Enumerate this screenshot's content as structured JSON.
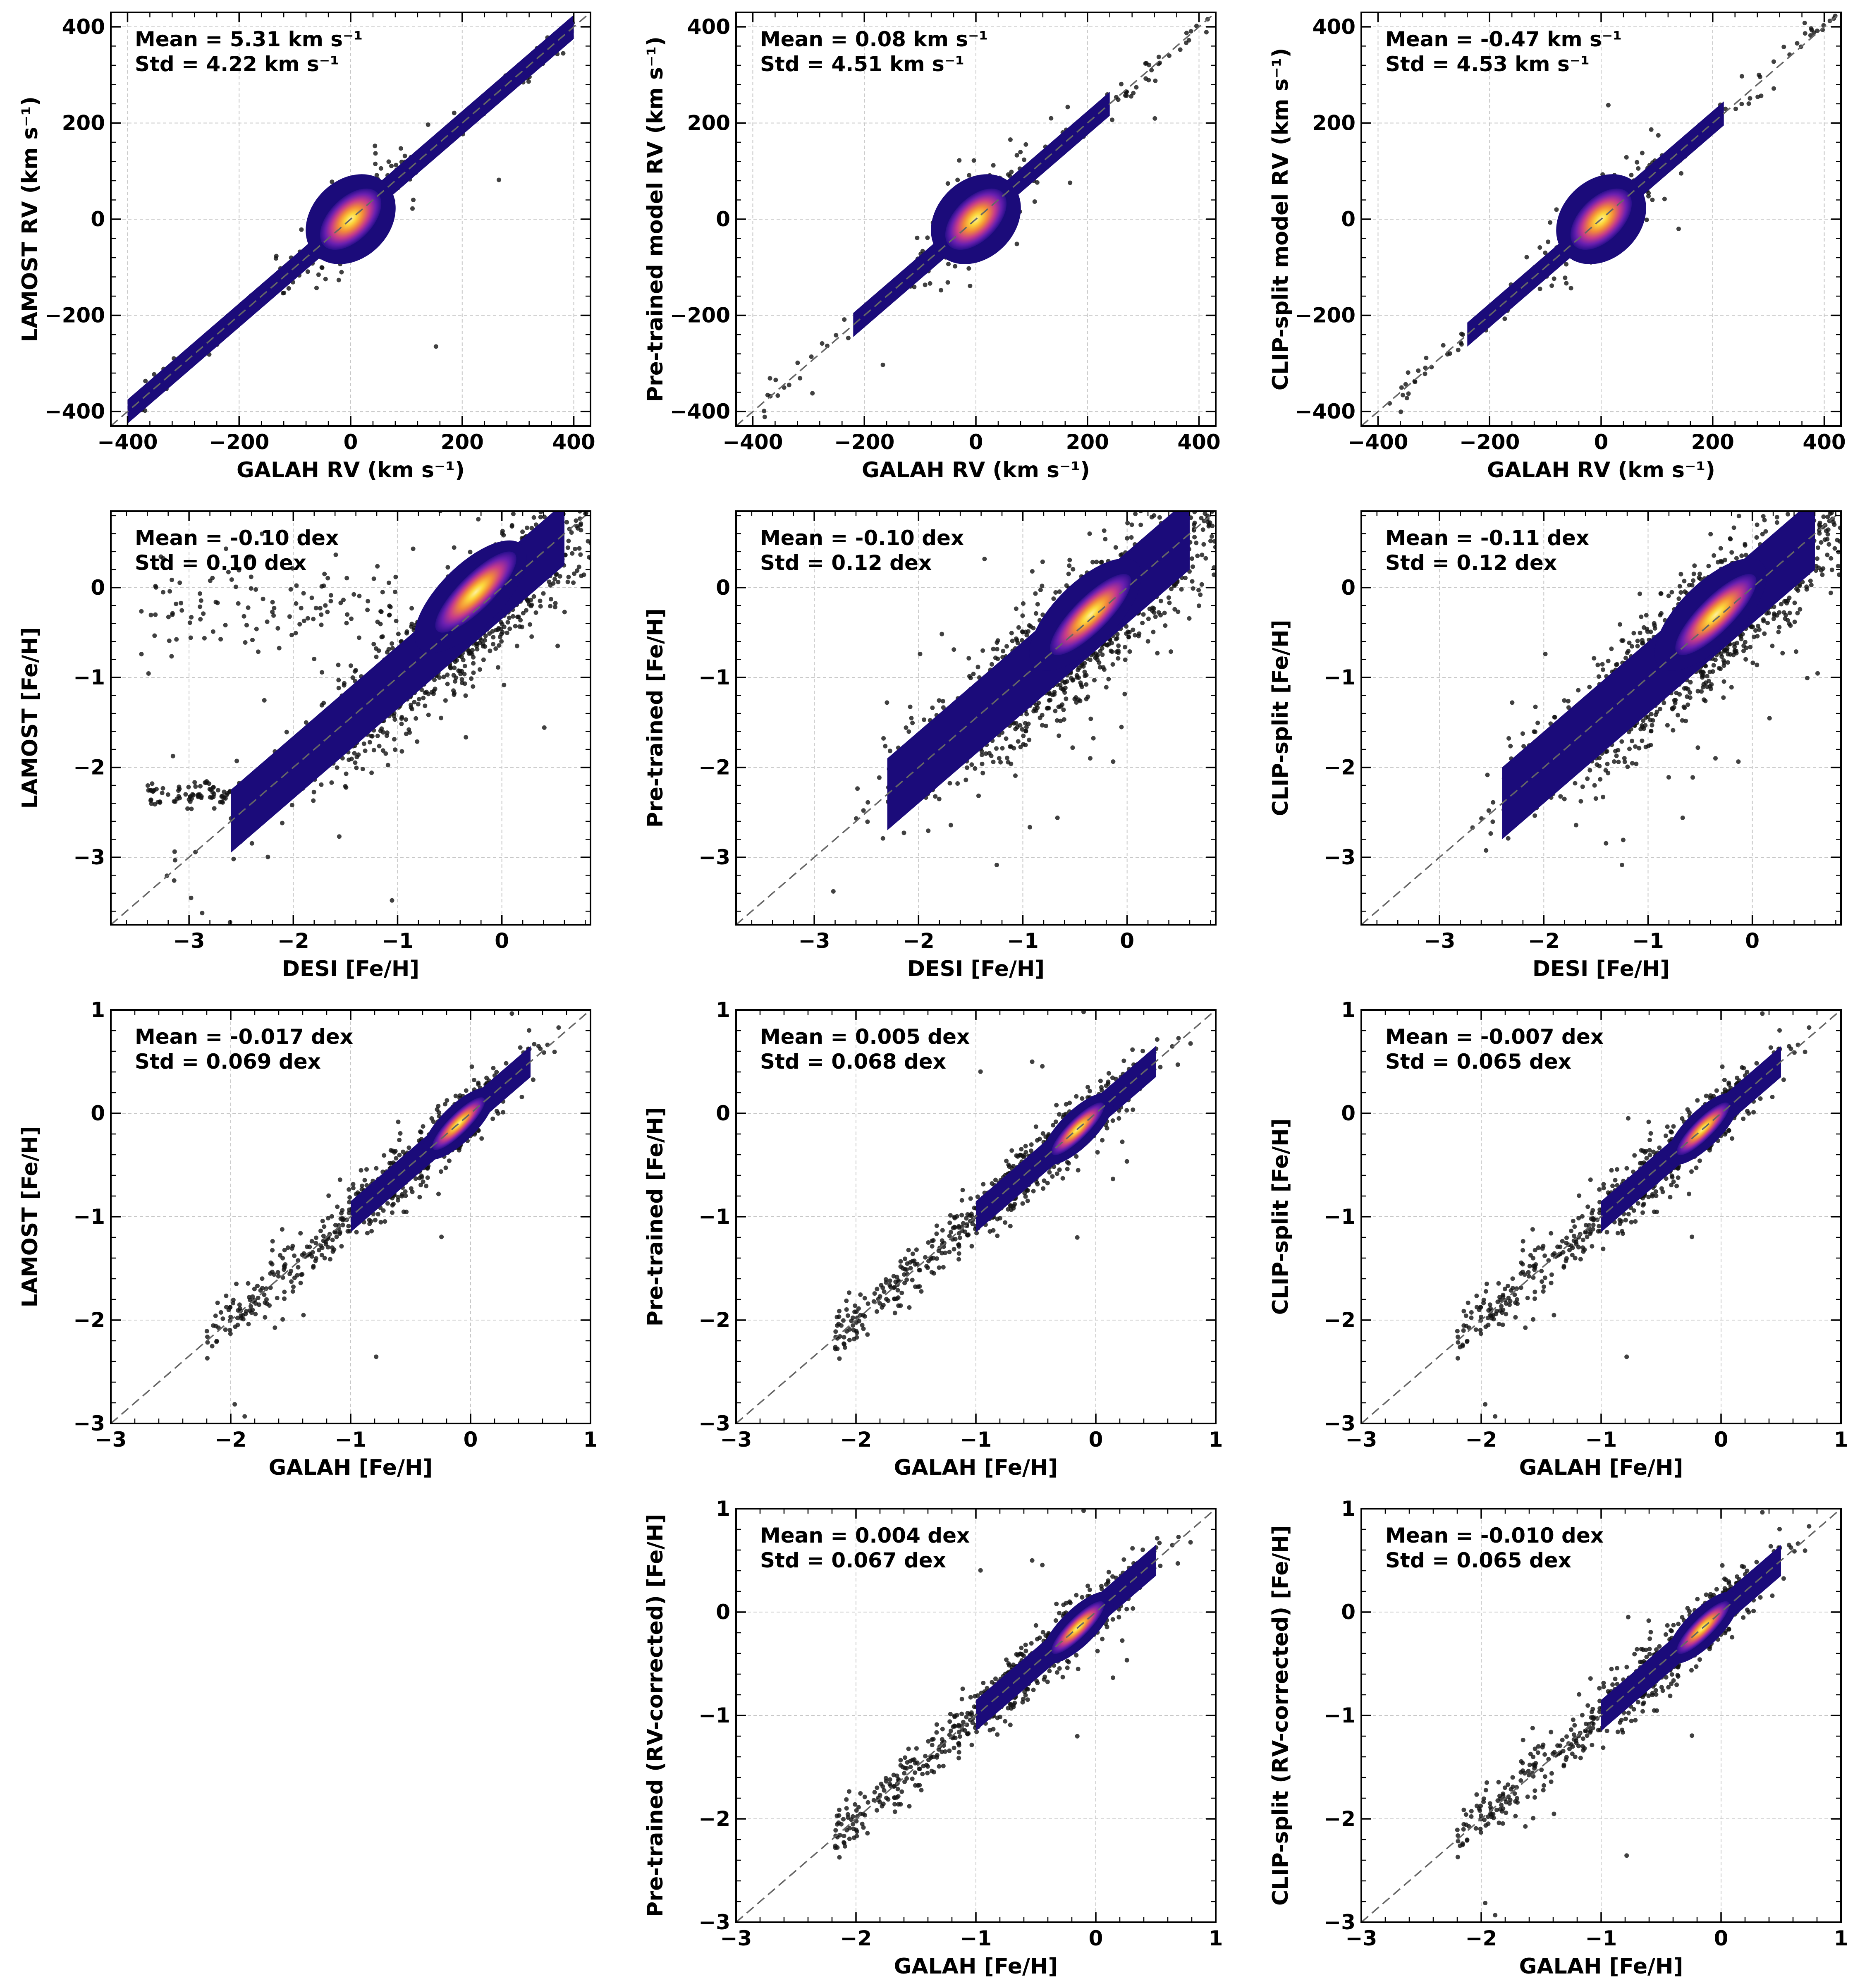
{
  "figure": {
    "title": "",
    "colors": {
      "points": "#111111",
      "diagonal": "#666666",
      "grid": "#c8c8c8",
      "density_low": "#1b0b7a",
      "density_mid": "#7b2bb3",
      "density_hi": "#e8566a",
      "density_peak": "#fcd83b"
    }
  },
  "chart_data": [
    {
      "id": "rv-lamost",
      "type": "scatter",
      "xlabel": "GALAH RV (km s⁻¹)",
      "ylabel": "LAMOST RV (km s⁻¹)",
      "xlim": [
        -430,
        430
      ],
      "ylim": [
        -430,
        430
      ],
      "xticks": [
        -400,
        -200,
        0,
        200,
        400
      ],
      "yticks": [
        -400,
        -200,
        0,
        200,
        400
      ],
      "xticklabels": [
        "−400",
        "−200",
        "0",
        "200",
        "400"
      ],
      "yticklabels": [
        "−400",
        "−200",
        "0",
        "200",
        "400"
      ],
      "stats": {
        "mean": "Mean = 5.31 km s⁻¹",
        "std": "Std = 4.22 km s⁻¹"
      },
      "density": {
        "core_x": [
          -400,
          400
        ],
        "width": 25,
        "blob_center": [
          0,
          0
        ],
        "blob_radius": [
          90,
          70
        ],
        "peak": [
          0,
          0
        ]
      },
      "points": {
        "n": 260,
        "spread": 40,
        "x_range": [
          -380,
          400
        ]
      }
    },
    {
      "id": "rv-pretrained",
      "type": "scatter",
      "xlabel": "GALAH RV (km s⁻¹)",
      "ylabel": "Pre-trained model RV (km s⁻¹)",
      "xlim": [
        -430,
        430
      ],
      "ylim": [
        -430,
        430
      ],
      "xticks": [
        -400,
        -200,
        0,
        200,
        400
      ],
      "yticks": [
        -400,
        -200,
        0,
        200,
        400
      ],
      "xticklabels": [
        "−400",
        "−200",
        "0",
        "200",
        "400"
      ],
      "yticklabels": [
        "−400",
        "−200",
        "0",
        "200",
        "400"
      ],
      "stats": {
        "mean": "Mean = 0.08 km s⁻¹",
        "std": "Std = 4.51 km s⁻¹"
      },
      "density": {
        "core_x": [
          -220,
          240
        ],
        "width": 25,
        "blob_center": [
          0,
          0
        ],
        "blob_radius": [
          90,
          70
        ],
        "peak": [
          0,
          0
        ]
      },
      "points": {
        "n": 260,
        "spread": 45,
        "x_range": [
          -380,
          420
        ]
      }
    },
    {
      "id": "rv-clip",
      "type": "scatter",
      "xlabel": "GALAH RV (km s⁻¹)",
      "ylabel": "CLIP-split model RV (km s⁻¹)",
      "xlim": [
        -430,
        430
      ],
      "ylim": [
        -430,
        430
      ],
      "xticks": [
        -400,
        -200,
        0,
        200,
        400
      ],
      "yticks": [
        -400,
        -200,
        0,
        200,
        400
      ],
      "xticklabels": [
        "−400",
        "−200",
        "0",
        "200",
        "400"
      ],
      "yticklabels": [
        "−400",
        "−200",
        "0",
        "200",
        "400"
      ],
      "stats": {
        "mean": "Mean = -0.47 km s⁻¹",
        "std": "Std = 4.53 km s⁻¹"
      },
      "density": {
        "core_x": [
          -240,
          220
        ],
        "width": 25,
        "blob_center": [
          0,
          0
        ],
        "blob_radius": [
          90,
          70
        ],
        "peak": [
          0,
          0
        ]
      },
      "points": {
        "n": 260,
        "spread": 45,
        "x_range": [
          -380,
          420
        ]
      }
    },
    {
      "id": "desi-lamost",
      "type": "scatter",
      "xlabel": "DESI [Fe/H]",
      "ylabel": "LAMOST [Fe/H]",
      "xlim": [
        -3.75,
        0.85
      ],
      "ylim": [
        -3.75,
        0.85
      ],
      "xticks": [
        -3,
        -2,
        -1,
        0
      ],
      "yticks": [
        -3,
        -2,
        -1,
        0
      ],
      "xticklabels": [
        "−3",
        "−2",
        "−1",
        "0"
      ],
      "yticklabels": [
        "−3",
        "−2",
        "−1",
        "0"
      ],
      "stats": {
        "mean": "Mean = -0.10 dex",
        "std": "Std = 0.10 dex"
      },
      "density": {
        "core_x": [
          -2.6,
          0.6
        ],
        "width": 0.35,
        "blob_center": [
          -0.3,
          -0.1
        ],
        "blob_radius": [
          0.7,
          0.3
        ],
        "peak": [
          -0.25,
          -0.05
        ]
      },
      "points": {
        "n": 1400,
        "spread": 0.3,
        "x_range": [
          -3.6,
          0.8
        ]
      }
    },
    {
      "id": "desi-pretrained",
      "type": "scatter",
      "xlabel": "DESI [Fe/H]",
      "ylabel": "Pre-trained [Fe/H]",
      "xlim": [
        -3.75,
        0.85
      ],
      "ylim": [
        -3.75,
        0.85
      ],
      "xticks": [
        -3,
        -2,
        -1,
        0
      ],
      "yticks": [
        -3,
        -2,
        -1,
        0
      ],
      "xticklabels": [
        "−3",
        "−2",
        "−1",
        "0"
      ],
      "yticklabels": [
        "−3",
        "−2",
        "−1",
        "0"
      ],
      "stats": {
        "mean": "Mean = -0.10 dex",
        "std": "Std = 0.12 dex"
      },
      "density": {
        "core_x": [
          -2.3,
          0.6
        ],
        "width": 0.4,
        "blob_center": [
          -0.4,
          -0.3
        ],
        "blob_radius": [
          0.7,
          0.3
        ],
        "peak": [
          -0.35,
          -0.3
        ]
      },
      "points": {
        "n": 1400,
        "spread": 0.35,
        "x_range": [
          -3.6,
          0.8
        ]
      }
    },
    {
      "id": "desi-clip",
      "type": "scatter",
      "xlabel": "DESI [Fe/H]",
      "ylabel": "CLIP-split [Fe/H]",
      "xlim": [
        -3.75,
        0.85
      ],
      "ylim": [
        -3.75,
        0.85
      ],
      "xticks": [
        -3,
        -2,
        -1,
        0
      ],
      "yticks": [
        -3,
        -2,
        -1,
        0
      ],
      "xticklabels": [
        "−3",
        "−2",
        "−1",
        "0"
      ],
      "yticklabels": [
        "−3",
        "−2",
        "−1",
        "0"
      ],
      "stats": {
        "mean": "Mean = -0.11 dex",
        "std": "Std = 0.12 dex"
      },
      "density": {
        "core_x": [
          -2.4,
          0.6
        ],
        "width": 0.4,
        "blob_center": [
          -0.4,
          -0.3
        ],
        "blob_radius": [
          0.7,
          0.3
        ],
        "peak": [
          -0.35,
          -0.3
        ]
      },
      "points": {
        "n": 1400,
        "spread": 0.35,
        "x_range": [
          -3.6,
          0.8
        ]
      }
    },
    {
      "id": "galah-lamost",
      "type": "scatter",
      "xlabel": "GALAH [Fe/H]",
      "ylabel": "LAMOST [Fe/H]",
      "xlim": [
        -3,
        1
      ],
      "ylim": [
        -3,
        1
      ],
      "xticks": [
        -3,
        -2,
        -1,
        0,
        1
      ],
      "yticks": [
        -3,
        -2,
        -1,
        0,
        1
      ],
      "xticklabels": [
        "−3",
        "−2",
        "−1",
        "0",
        "1"
      ],
      "yticklabels": [
        "−3",
        "−2",
        "−1",
        "0",
        "1"
      ],
      "stats": {
        "mean": "Mean = -0.017 dex",
        "std": "Std = 0.069 dex"
      },
      "density": {
        "core_x": [
          -1.0,
          0.5
        ],
        "width": 0.15,
        "blob_center": [
          -0.1,
          -0.1
        ],
        "blob_radius": [
          0.4,
          0.15
        ],
        "peak": [
          -0.1,
          -0.1
        ]
      },
      "points": {
        "n": 800,
        "spread": 0.13,
        "x_range": [
          -2.9,
          0.9
        ]
      }
    },
    {
      "id": "galah-pretrained",
      "type": "scatter",
      "xlabel": "GALAH [Fe/H]",
      "ylabel": "Pre-trained [Fe/H]",
      "xlim": [
        -3,
        1
      ],
      "ylim": [
        -3,
        1
      ],
      "xticks": [
        -3,
        -2,
        -1,
        0,
        1
      ],
      "yticks": [
        -3,
        -2,
        -1,
        0,
        1
      ],
      "xticklabels": [
        "−3",
        "−2",
        "−1",
        "0",
        "1"
      ],
      "yticklabels": [
        "−3",
        "−2",
        "−1",
        "0",
        "1"
      ],
      "stats": {
        "mean": "Mean = 0.005 dex",
        "std": "Std = 0.068 dex"
      },
      "density": {
        "core_x": [
          -1.0,
          0.5
        ],
        "width": 0.15,
        "blob_center": [
          -0.15,
          -0.15
        ],
        "blob_radius": [
          0.4,
          0.15
        ],
        "peak": [
          -0.15,
          -0.15
        ]
      },
      "points": {
        "n": 800,
        "spread": 0.13,
        "x_range": [
          -2.9,
          0.9
        ]
      }
    },
    {
      "id": "galah-clip",
      "type": "scatter",
      "xlabel": "GALAH [Fe/H]",
      "ylabel": "CLIP-split [Fe/H]",
      "xlim": [
        -3,
        1
      ],
      "ylim": [
        -3,
        1
      ],
      "xticks": [
        -3,
        -2,
        -1,
        0,
        1
      ],
      "yticks": [
        -3,
        -2,
        -1,
        0,
        1
      ],
      "xticklabels": [
        "−3",
        "−2",
        "−1",
        "0",
        "1"
      ],
      "yticklabels": [
        "−3",
        "−2",
        "−1",
        "0",
        "1"
      ],
      "stats": {
        "mean": "Mean = -0.007 dex",
        "std": "Std = 0.065 dex"
      },
      "density": {
        "core_x": [
          -1.0,
          0.5
        ],
        "width": 0.15,
        "blob_center": [
          -0.15,
          -0.15
        ],
        "blob_radius": [
          0.4,
          0.15
        ],
        "peak": [
          -0.15,
          -0.15
        ]
      },
      "points": {
        "n": 800,
        "spread": 0.13,
        "x_range": [
          -2.9,
          0.9
        ]
      }
    },
    {
      "id": "galah-pretrained-rv",
      "type": "scatter",
      "xlabel": "GALAH [Fe/H]",
      "ylabel": "Pre-trained (RV-corrected) [Fe/H]",
      "xlim": [
        -3,
        1
      ],
      "ylim": [
        -3,
        1
      ],
      "xticks": [
        -3,
        -2,
        -1,
        0,
        1
      ],
      "yticks": [
        -3,
        -2,
        -1,
        0,
        1
      ],
      "xticklabels": [
        "−3",
        "−2",
        "−1",
        "0",
        "1"
      ],
      "yticklabels": [
        "−3",
        "−2",
        "−1",
        "0",
        "1"
      ],
      "stats": {
        "mean": "Mean = 0.004 dex",
        "std": "Std = 0.067 dex"
      },
      "density": {
        "core_x": [
          -1.0,
          0.5
        ],
        "width": 0.15,
        "blob_center": [
          -0.15,
          -0.15
        ],
        "blob_radius": [
          0.4,
          0.15
        ],
        "peak": [
          -0.15,
          -0.15
        ]
      },
      "points": {
        "n": 800,
        "spread": 0.13,
        "x_range": [
          -2.9,
          0.9
        ]
      }
    },
    {
      "id": "galah-clip-rv",
      "type": "scatter",
      "xlabel": "GALAH [Fe/H]",
      "ylabel": "CLIP-split (RV-corrected) [Fe/H]",
      "xlim": [
        -3,
        1
      ],
      "ylim": [
        -3,
        1
      ],
      "xticks": [
        -3,
        -2,
        -1,
        0,
        1
      ],
      "yticks": [
        -3,
        -2,
        -1,
        0,
        1
      ],
      "xticklabels": [
        "−3",
        "−2",
        "−1",
        "0",
        "1"
      ],
      "yticklabels": [
        "−3",
        "−2",
        "−1",
        "0",
        "1"
      ],
      "stats": {
        "mean": "Mean = -0.010 dex",
        "std": "Std = 0.065 dex"
      },
      "density": {
        "core_x": [
          -1.0,
          0.5
        ],
        "width": 0.15,
        "blob_center": [
          -0.15,
          -0.15
        ],
        "blob_radius": [
          0.4,
          0.15
        ],
        "peak": [
          -0.15,
          -0.15
        ]
      },
      "points": {
        "n": 800,
        "spread": 0.13,
        "x_range": [
          -2.9,
          0.9
        ]
      }
    }
  ]
}
